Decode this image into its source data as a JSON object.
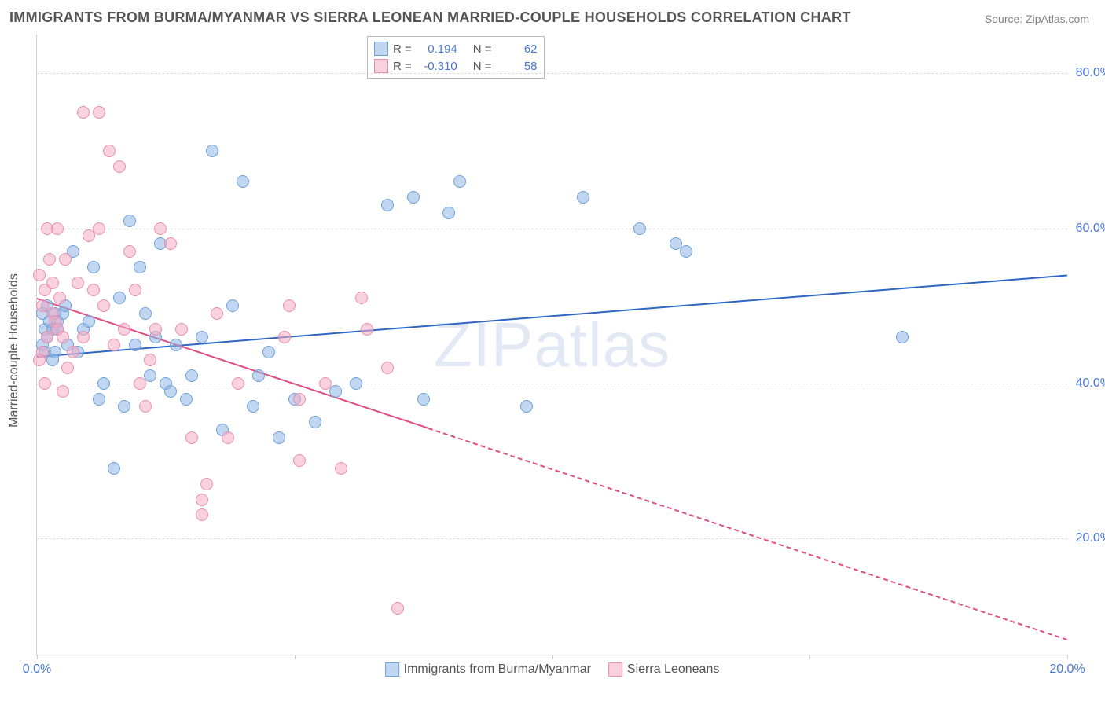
{
  "title": "IMMIGRANTS FROM BURMA/MYANMAR VS SIERRA LEONEAN MARRIED-COUPLE HOUSEHOLDS CORRELATION CHART",
  "source_label": "Source: ZipAtlas.com",
  "watermark": "ZIPatlas",
  "y_axis_title": "Married-couple Households",
  "chart": {
    "type": "scatter",
    "background_color": "#ffffff",
    "grid_color": "#dcdcdc",
    "axis_color": "#cfcfcf",
    "xlim": [
      0,
      20
    ],
    "ylim": [
      5,
      85
    ],
    "x_ticks": [
      0,
      5,
      10,
      15,
      20
    ],
    "x_tick_labels": [
      "0.0%",
      "",
      "",
      "",
      "20.0%"
    ],
    "y_ticks": [
      20,
      40,
      60,
      80
    ],
    "y_tick_labels": [
      "20.0%",
      "40.0%",
      "60.0%",
      "80.0%"
    ],
    "label_fontsize": 16,
    "label_color": "#4a78d6",
    "point_radius": 8,
    "series": [
      {
        "name": "Immigrants from Burma/Myanmar",
        "fill": "rgba(142,180,227,0.55)",
        "stroke": "#6fa0d8",
        "R": "0.194",
        "N": "62",
        "trend": {
          "x1": 0,
          "y1": 43.5,
          "x2": 20,
          "y2": 54,
          "color": "#2f66c4",
          "solid_until_x": 20
        },
        "points": [
          [
            0.1,
            49
          ],
          [
            0.1,
            45
          ],
          [
            0.15,
            47
          ],
          [
            0.15,
            44
          ],
          [
            0.2,
            46
          ],
          [
            0.2,
            50
          ],
          [
            0.25,
            48
          ],
          [
            0.3,
            43
          ],
          [
            0.3,
            47
          ],
          [
            0.35,
            49
          ],
          [
            0.4,
            48
          ],
          [
            0.4,
            47
          ],
          [
            0.5,
            49
          ],
          [
            0.55,
            50
          ],
          [
            0.6,
            45
          ],
          [
            0.7,
            57
          ],
          [
            0.8,
            44
          ],
          [
            0.9,
            47
          ],
          [
            1.0,
            48
          ],
          [
            1.1,
            55
          ],
          [
            1.2,
            38
          ],
          [
            1.3,
            40
          ],
          [
            1.5,
            29
          ],
          [
            1.6,
            51
          ],
          [
            1.7,
            37
          ],
          [
            1.8,
            61
          ],
          [
            1.9,
            45
          ],
          [
            2.0,
            55
          ],
          [
            2.1,
            49
          ],
          [
            2.2,
            41
          ],
          [
            2.3,
            46
          ],
          [
            2.4,
            58
          ],
          [
            2.5,
            40
          ],
          [
            2.6,
            39
          ],
          [
            2.7,
            45
          ],
          [
            2.9,
            38
          ],
          [
            3.0,
            41
          ],
          [
            3.2,
            46
          ],
          [
            3.4,
            70
          ],
          [
            3.6,
            34
          ],
          [
            3.8,
            50
          ],
          [
            4.0,
            66
          ],
          [
            4.2,
            37
          ],
          [
            4.3,
            41
          ],
          [
            4.5,
            44
          ],
          [
            4.7,
            33
          ],
          [
            5.0,
            38
          ],
          [
            5.4,
            35
          ],
          [
            5.8,
            39
          ],
          [
            6.2,
            40
          ],
          [
            6.8,
            63
          ],
          [
            7.3,
            64
          ],
          [
            7.5,
            38
          ],
          [
            8.0,
            62
          ],
          [
            8.2,
            66
          ],
          [
            9.5,
            37
          ],
          [
            10.6,
            64
          ],
          [
            11.7,
            60
          ],
          [
            12.4,
            58
          ],
          [
            12.6,
            57
          ],
          [
            16.8,
            46
          ],
          [
            0.35,
            44
          ]
        ]
      },
      {
        "name": "Sierra Leoneans",
        "fill": "rgba(244,171,196,0.55)",
        "stroke": "#e88fb0",
        "R": "-0.310",
        "N": "58",
        "trend": {
          "x1": 0,
          "y1": 51,
          "x2": 20,
          "y2": 7,
          "color": "#e04f83",
          "solid_until_x": 7.6
        },
        "points": [
          [
            0.1,
            50
          ],
          [
            0.1,
            44
          ],
          [
            0.15,
            52
          ],
          [
            0.15,
            40
          ],
          [
            0.2,
            60
          ],
          [
            0.2,
            46
          ],
          [
            0.25,
            56
          ],
          [
            0.3,
            49
          ],
          [
            0.3,
            53
          ],
          [
            0.35,
            48
          ],
          [
            0.4,
            47
          ],
          [
            0.4,
            60
          ],
          [
            0.45,
            51
          ],
          [
            0.5,
            46
          ],
          [
            0.5,
            39
          ],
          [
            0.55,
            56
          ],
          [
            0.6,
            42
          ],
          [
            0.7,
            44
          ],
          [
            0.8,
            53
          ],
          [
            0.9,
            46
          ],
          [
            0.9,
            75
          ],
          [
            1.0,
            59
          ],
          [
            1.1,
            52
          ],
          [
            1.2,
            60
          ],
          [
            1.2,
            75
          ],
          [
            1.3,
            50
          ],
          [
            1.4,
            70
          ],
          [
            1.5,
            45
          ],
          [
            1.6,
            68
          ],
          [
            1.7,
            47
          ],
          [
            1.8,
            57
          ],
          [
            1.9,
            52
          ],
          [
            2.0,
            40
          ],
          [
            2.1,
            37
          ],
          [
            2.2,
            43
          ],
          [
            2.3,
            47
          ],
          [
            2.4,
            60
          ],
          [
            2.6,
            58
          ],
          [
            2.8,
            47
          ],
          [
            3.0,
            33
          ],
          [
            3.2,
            25
          ],
          [
            3.2,
            23
          ],
          [
            3.3,
            27
          ],
          [
            3.5,
            49
          ],
          [
            3.7,
            33
          ],
          [
            3.9,
            40
          ],
          [
            4.8,
            46
          ],
          [
            4.9,
            50
          ],
          [
            5.1,
            38
          ],
          [
            5.1,
            30
          ],
          [
            5.6,
            40
          ],
          [
            5.9,
            29
          ],
          [
            6.3,
            51
          ],
          [
            6.4,
            47
          ],
          [
            6.8,
            42
          ],
          [
            7.0,
            11
          ],
          [
            0.05,
            43
          ],
          [
            0.05,
            54
          ]
        ]
      }
    ]
  },
  "legend_top": {
    "r_label": "R =",
    "n_label": "N ="
  },
  "legend_bottom": {
    "items": [
      "Immigrants from Burma/Myanmar",
      "Sierra Leoneans"
    ]
  }
}
